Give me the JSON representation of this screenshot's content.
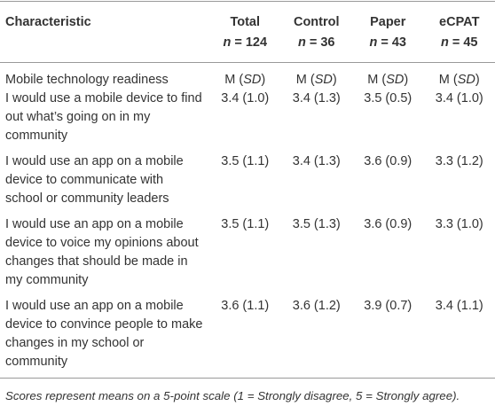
{
  "table": {
    "columns": [
      {
        "label": "Characteristic"
      },
      {
        "label": "Total",
        "n_var": "n",
        "n_value": "= 124"
      },
      {
        "label": "Control",
        "n_var": "n",
        "n_value": "= 36"
      },
      {
        "label": "Paper",
        "n_var": "n",
        "n_value": "= 43"
      },
      {
        "label": "eCPAT",
        "n_var": "n",
        "n_value": "= 45"
      }
    ],
    "section": {
      "label": "Mobile technology readiness",
      "stat_pre": "M (",
      "stat_var": "SD",
      "stat_post": ")"
    },
    "rows": [
      [
        "I would use a mobile device to find out what’s going on in my community",
        "3.4 (1.0)",
        "3.4 (1.3)",
        "3.5 (0.5)",
        "3.4 (1.0)"
      ],
      [
        "I would use an app on a mobile device to communicate with school or community leaders",
        "3.5 (1.1)",
        "3.4 (1.3)",
        "3.6 (0.9)",
        "3.3 (1.2)"
      ],
      [
        "I would use an app on a mobile device to voice my opinions about changes that should be made in my community",
        "3.5 (1.1)",
        "3.5 (1.3)",
        "3.6 (0.9)",
        "3.3 (1.0)"
      ],
      [
        "I would use an app on a mobile device to convince people to make changes in my school or community",
        "3.6 (1.1)",
        "3.6 (1.2)",
        "3.9 (0.7)",
        "3.4 (1.1)"
      ]
    ],
    "footnote": "Scores represent means on a 5-point scale (1 = Strongly disagree, 5 = Strongly agree)."
  }
}
